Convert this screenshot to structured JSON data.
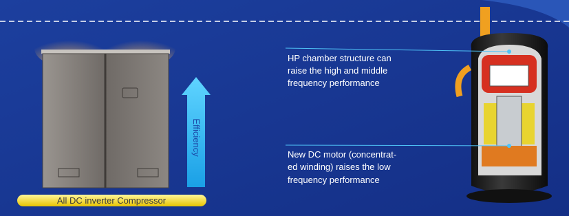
{
  "unit_label": "All DC inverter Compressor",
  "arrow_label": "Efficiency",
  "callouts": [
    {
      "lines": [
        "HP chamber structure can",
        "raise the high and middle",
        "frequency performance"
      ]
    },
    {
      "lines": [
        "New DC motor (concentrat-",
        "ed winding) raises the low",
        "frequency performance"
      ]
    }
  ]
}
